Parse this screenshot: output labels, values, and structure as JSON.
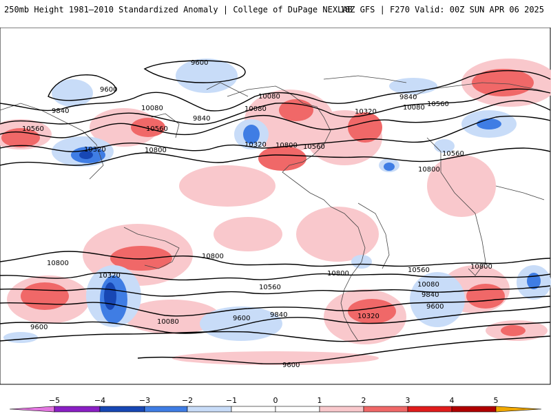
{
  "header": {
    "title_left": "250mb Height 1981–2010 Standardized Anomaly | College of DuPage NEXLAB",
    "title_right": "18Z GFS | F270 Valid: 00Z SUN APR 06 2025"
  },
  "contour_labels": [
    "9600",
    "9600",
    "9840",
    "9840",
    "10080",
    "10080",
    "10320",
    "10560",
    "10560",
    "10800",
    "10080",
    "10320",
    "10800",
    "10560",
    "10320",
    "10560",
    "9840",
    "10080",
    "10560",
    "10800",
    "10800",
    "10800",
    "10320",
    "10800",
    "10560",
    "10080",
    "9600",
    "9840",
    "10560",
    "10080",
    "9840",
    "9600",
    "10800",
    "10320",
    "9600",
    "9600"
  ],
  "colorbar": {
    "ticks": [
      "−5",
      "−4",
      "−3",
      "−2",
      "−1",
      "0",
      "1",
      "2",
      "3",
      "4",
      "5"
    ],
    "colors": {
      "lt_neg5": "#e377e0",
      "neg5_neg4": "#8a1fc4",
      "neg4_neg3": "#1747b4",
      "neg3_neg2": "#3f7de4",
      "neg2_neg1": "#c8dcf8",
      "neg1_0": "#ffffff",
      "0_1": "#ffffff",
      "1_2": "#f9c8cc",
      "2_3": "#f06868",
      "3_4": "#e01c1c",
      "4_5": "#b00000",
      "gt_5": "#f0a800"
    }
  }
}
